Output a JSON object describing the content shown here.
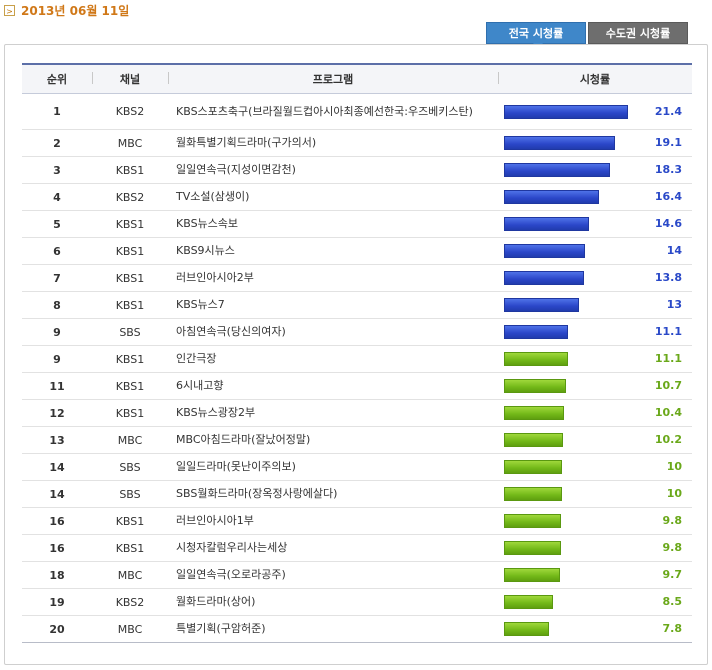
{
  "date": "2013년 06월 11일",
  "tabs": {
    "active": "전국 시청률",
    "inactive": "수도권 시청률"
  },
  "table": {
    "headers": {
      "rank": "순위",
      "channel": "채널",
      "program": "프로그램",
      "rating": "시청률"
    },
    "max_rating": 21.4,
    "rows": [
      {
        "rank": "1",
        "channel": "KBS2",
        "program": "KBS스포츠축구(브라질월드컵아시아최종예선한국:우즈베키스탄)",
        "rating": "21.4",
        "value": 21.4,
        "color": "blue"
      },
      {
        "rank": "2",
        "channel": "MBC",
        "program": "월화특별기획드라마(구가의서)",
        "rating": "19.1",
        "value": 19.1,
        "color": "blue"
      },
      {
        "rank": "3",
        "channel": "KBS1",
        "program": "일일연속극(지성이면감천)",
        "rating": "18.3",
        "value": 18.3,
        "color": "blue"
      },
      {
        "rank": "4",
        "channel": "KBS2",
        "program": "TV소설(삼생이)",
        "rating": "16.4",
        "value": 16.4,
        "color": "blue"
      },
      {
        "rank": "5",
        "channel": "KBS1",
        "program": "KBS뉴스속보",
        "rating": "14.6",
        "value": 14.6,
        "color": "blue"
      },
      {
        "rank": "6",
        "channel": "KBS1",
        "program": "KBS9시뉴스",
        "rating": "14",
        "value": 14,
        "color": "blue"
      },
      {
        "rank": "7",
        "channel": "KBS1",
        "program": "러브인아시아2부",
        "rating": "13.8",
        "value": 13.8,
        "color": "blue"
      },
      {
        "rank": "8",
        "channel": "KBS1",
        "program": "KBS뉴스7",
        "rating": "13",
        "value": 13,
        "color": "blue"
      },
      {
        "rank": "9",
        "channel": "SBS",
        "program": "아침연속극(당신의여자)",
        "rating": "11.1",
        "value": 11.1,
        "color": "blue"
      },
      {
        "rank": "9",
        "channel": "KBS1",
        "program": "인간극장",
        "rating": "11.1",
        "value": 11.1,
        "color": "green"
      },
      {
        "rank": "11",
        "channel": "KBS1",
        "program": "6시내고향",
        "rating": "10.7",
        "value": 10.7,
        "color": "green"
      },
      {
        "rank": "12",
        "channel": "KBS1",
        "program": "KBS뉴스광장2부",
        "rating": "10.4",
        "value": 10.4,
        "color": "green"
      },
      {
        "rank": "13",
        "channel": "MBC",
        "program": "MBC아침드라마(잘났어정말)",
        "rating": "10.2",
        "value": 10.2,
        "color": "green"
      },
      {
        "rank": "14",
        "channel": "SBS",
        "program": "일일드라마(못난이주의보)",
        "rating": "10",
        "value": 10,
        "color": "green"
      },
      {
        "rank": "14",
        "channel": "SBS",
        "program": "SBS월화드라마(장옥정사랑에살다)",
        "rating": "10",
        "value": 10,
        "color": "green"
      },
      {
        "rank": "16",
        "channel": "KBS1",
        "program": "러브인아시아1부",
        "rating": "9.8",
        "value": 9.8,
        "color": "green"
      },
      {
        "rank": "16",
        "channel": "KBS1",
        "program": "시청자칼럼우리사는세상",
        "rating": "9.8",
        "value": 9.8,
        "color": "green"
      },
      {
        "rank": "18",
        "channel": "MBC",
        "program": "일일연속극(오로라공주)",
        "rating": "9.7",
        "value": 9.7,
        "color": "green"
      },
      {
        "rank": "19",
        "channel": "KBS2",
        "program": "월화드라마(상어)",
        "rating": "8.5",
        "value": 8.5,
        "color": "green"
      },
      {
        "rank": "20",
        "channel": "MBC",
        "program": "특별기획(구암허준)",
        "rating": "7.8",
        "value": 7.8,
        "color": "green"
      }
    ]
  }
}
